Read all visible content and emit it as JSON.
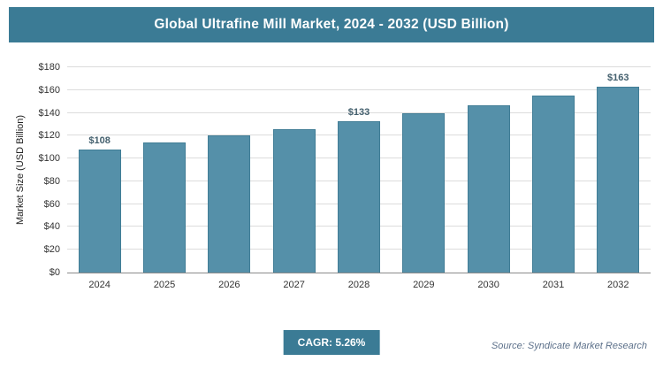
{
  "title_bar": {
    "title": "Global Ultrafine Mill Market, 2024 - 2032 (USD Billion)",
    "background": "#3b7b95"
  },
  "chart_data": {
    "type": "bar",
    "title": "Global Ultrafine Mill Market, 2024 - 2032 (USD Billion)",
    "categories": [
      "2024",
      "2025",
      "2026",
      "2027",
      "2028",
      "2029",
      "2030",
      "2031",
      "2032"
    ],
    "values": [
      108,
      114,
      120,
      126,
      133,
      140,
      147,
      155,
      163
    ],
    "bar_labels": [
      "$108",
      "",
      "",
      "",
      "$133",
      "",
      "",
      "",
      "$163"
    ],
    "xlabel": "",
    "ylabel": "Market Size (USD Billion)",
    "ylim": [
      0,
      180
    ],
    "ytick_step": 20,
    "ytick_prefix": "$",
    "grid": true,
    "legend": "none",
    "bar_color": "#5590a9"
  },
  "footer": {
    "cagr_label": "CAGR: 5.26%",
    "source": "Source: Syndicate Market Research"
  }
}
